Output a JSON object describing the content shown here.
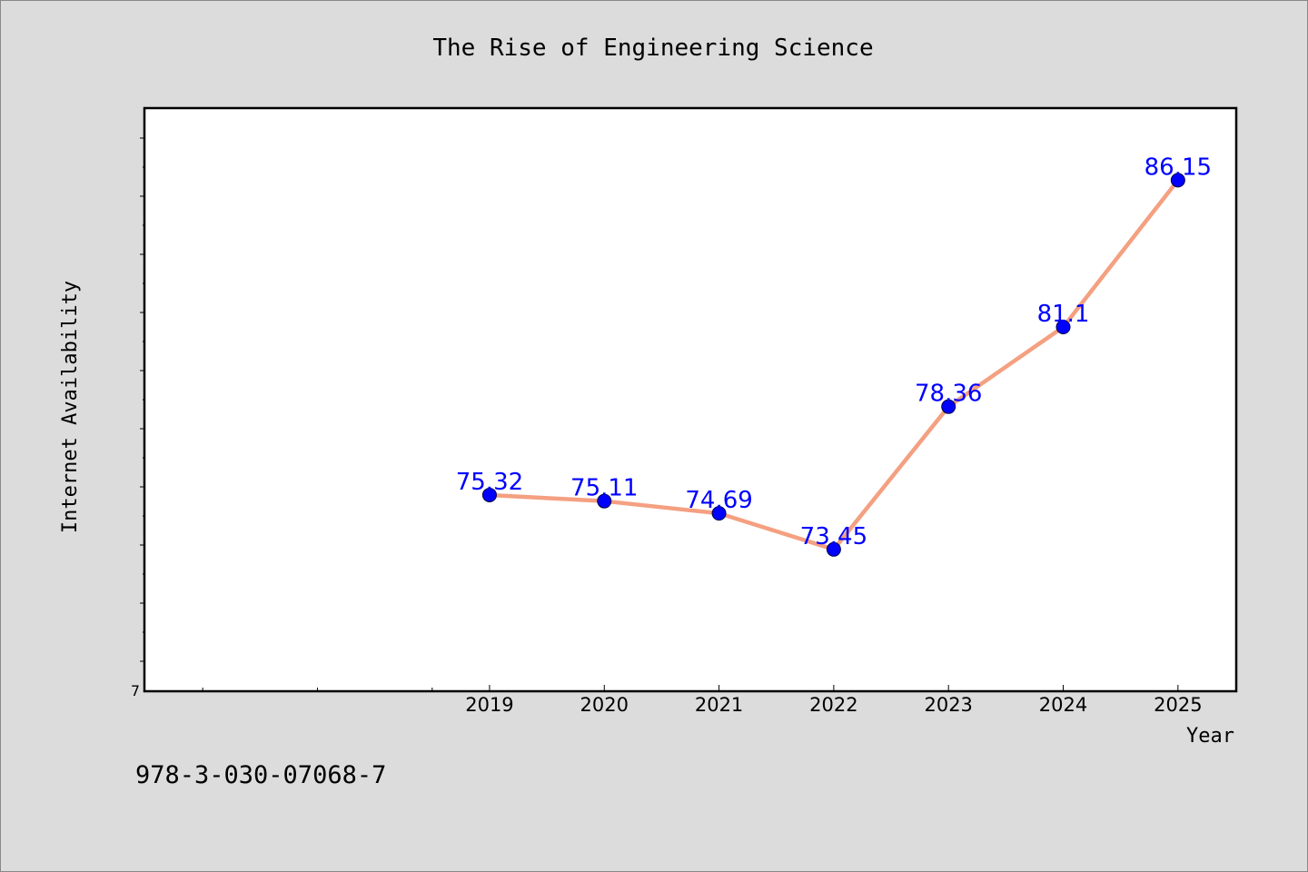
{
  "chart_data": {
    "type": "line",
    "title": "The Rise of Engineering Science",
    "xlabel": "Year",
    "ylabel": "Internet Availability",
    "x": [
      "2019",
      "2020",
      "2021",
      "2022",
      "2023",
      "2024",
      "2025"
    ],
    "series": [
      {
        "values": [
          75.32,
          75.11,
          74.69,
          73.45,
          78.36,
          81.1,
          86.15
        ],
        "labels": [
          "75.32",
          "75.11",
          "74.69",
          "73.45",
          "78.36",
          "81.1",
          "86.15"
        ]
      }
    ],
    "xlim": [
      2016,
      2025.5
    ],
    "ylim": [
      68.6,
      88.6
    ],
    "y_tick_labels": [
      "7"
    ],
    "line_color": "#f4a081",
    "marker_color": "#0000ff",
    "label_color": "#0000ff",
    "grid": false
  },
  "footer": {
    "isbn": "978-3-030-07068-7"
  }
}
